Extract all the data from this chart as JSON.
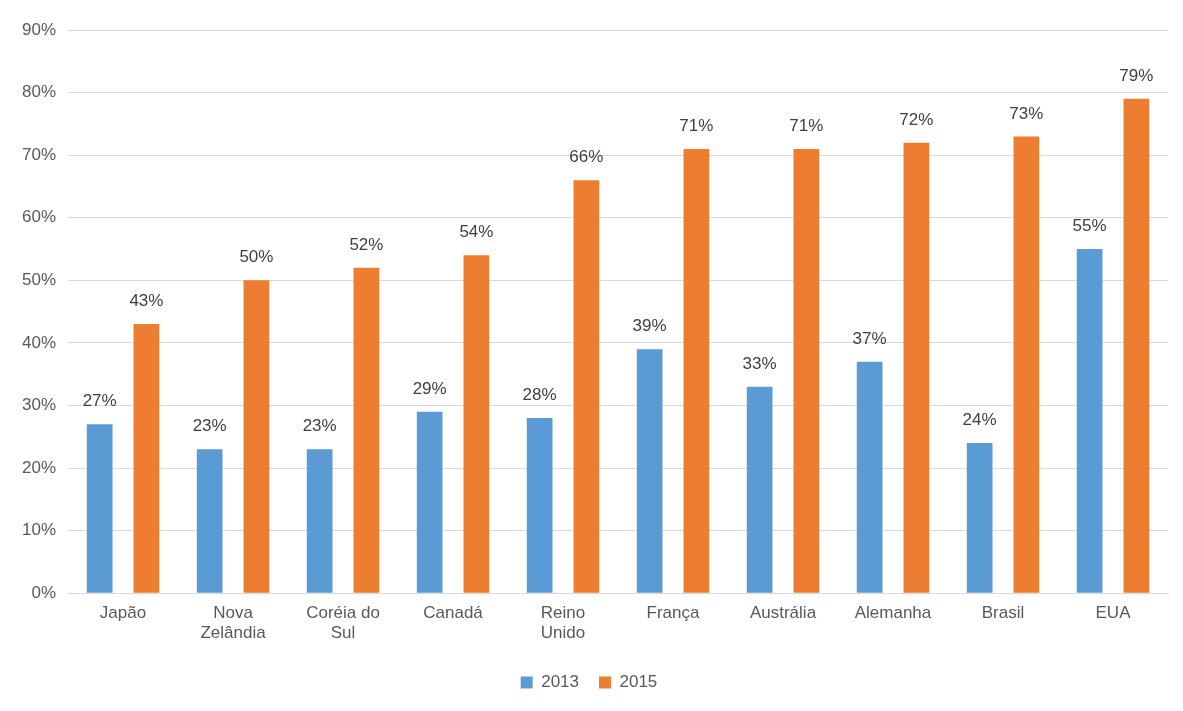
{
  "chart_data": {
    "type": "bar",
    "categories": [
      "Japão",
      "Nova Zelândia",
      "Coréia do Sul",
      "Canadá",
      "Reino Unido",
      "França",
      "Austrália",
      "Alemanha",
      "Brasil",
      "EUA"
    ],
    "series": [
      {
        "name": "2013",
        "color": "#5b9bd5",
        "values": [
          27,
          23,
          23,
          29,
          28,
          39,
          33,
          37,
          24,
          55
        ],
        "value_labels": [
          "27%",
          "23%",
          "23%",
          "29%",
          "28%",
          "39%",
          "33%",
          "37%",
          "24%",
          "55%"
        ]
      },
      {
        "name": "2015",
        "color": "#ed7d31",
        "values": [
          43,
          50,
          52,
          54,
          66,
          71,
          71,
          72,
          73,
          79
        ],
        "value_labels": [
          "43%",
          "50%",
          "52%",
          "54%",
          "66%",
          "71%",
          "71%",
          "72%",
          "73%",
          "79%"
        ]
      }
    ],
    "ylim": [
      0,
      90
    ],
    "yticks": [
      {
        "value": 0,
        "label": "0%"
      },
      {
        "value": 10,
        "label": "10%"
      },
      {
        "value": 20,
        "label": "20%"
      },
      {
        "value": 30,
        "label": "30%"
      },
      {
        "value": 40,
        "label": "40%"
      },
      {
        "value": 50,
        "label": "50%"
      },
      {
        "value": 60,
        "label": "60%"
      },
      {
        "value": 70,
        "label": "70%"
      },
      {
        "value": 80,
        "label": "80%"
      },
      {
        "value": 90,
        "label": "90%"
      }
    ],
    "grid": "y",
    "legend": "bottom"
  }
}
